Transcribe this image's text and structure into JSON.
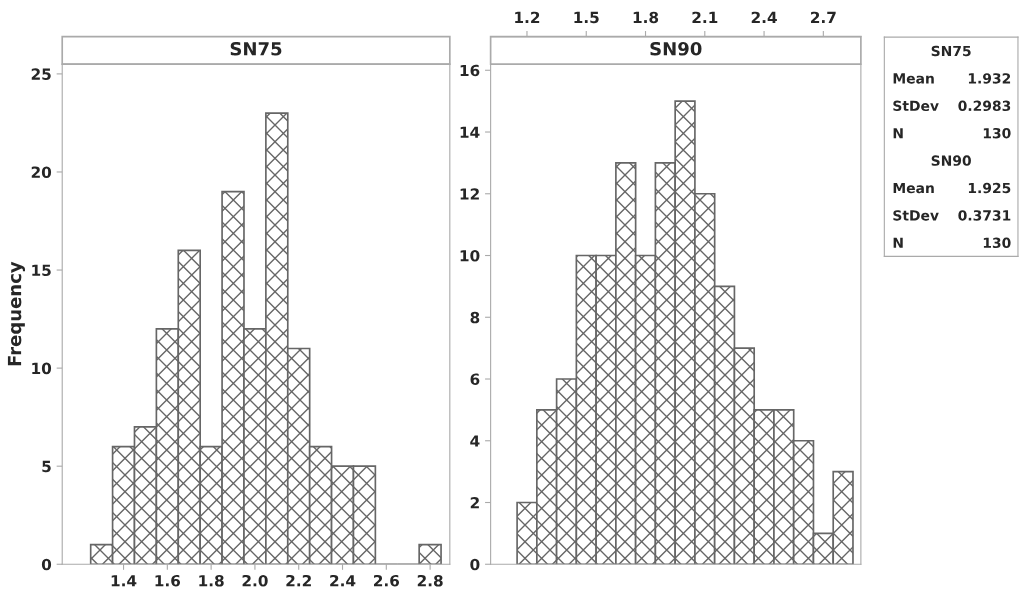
{
  "chart_data": [
    {
      "type": "histogram",
      "title": "SN75",
      "ylabel": "Frequency",
      "color": "#666666",
      "bins": [
        1.25,
        1.35,
        1.45,
        1.55,
        1.65,
        1.75,
        1.85,
        1.95,
        2.05,
        2.15,
        2.25,
        2.35,
        2.45,
        2.55,
        2.65,
        2.75,
        2.85
      ],
      "values": [
        1,
        6,
        7,
        12,
        16,
        6,
        19,
        12,
        23,
        11,
        6,
        5,
        5,
        0,
        0,
        1
      ],
      "xlim": [
        1.12,
        2.89
      ],
      "xticks": [
        {
          "value": 1.4,
          "label": "1.4"
        },
        {
          "value": 1.6,
          "label": "1.6"
        },
        {
          "value": 1.8,
          "label": "1.8"
        },
        {
          "value": 2.0,
          "label": "2.0"
        },
        {
          "value": 2.2,
          "label": "2.2"
        },
        {
          "value": 2.4,
          "label": "2.4"
        },
        {
          "value": 2.6,
          "label": "2.6"
        },
        {
          "value": 2.8,
          "label": "2.8"
        }
      ],
      "ylim": [
        0,
        25.5
      ],
      "yticks": [
        0,
        5,
        10,
        15,
        20,
        25
      ],
      "grid": false,
      "legend": false
    },
    {
      "type": "histogram",
      "title": "SN90",
      "color": "#666666",
      "bins": [
        1.15,
        1.25,
        1.35,
        1.45,
        1.55,
        1.65,
        1.75,
        1.85,
        1.95,
        2.05,
        2.15,
        2.25,
        2.35,
        2.45,
        2.55,
        2.65,
        2.75,
        2.85
      ],
      "values": [
        2,
        5,
        6,
        10,
        10,
        13,
        10,
        13,
        15,
        12,
        9,
        7,
        5,
        5,
        4,
        1,
        3
      ],
      "xlim": [
        1.016,
        2.89
      ],
      "xticks": [
        1.2,
        1.5,
        1.8,
        2.1,
        2.4,
        2.7
      ],
      "ylim": [
        0,
        16.2
      ],
      "yticks": [
        0,
        2,
        4,
        6,
        8,
        10,
        12,
        14,
        16
      ],
      "grid": false,
      "legend": false,
      "annotations": [
        "SN75",
        "Mean 1.932",
        "StDev 0.2983",
        "N 130",
        "SN90",
        "Mean 1.925",
        "StDev 0.3731",
        "N 130"
      ]
    }
  ]
}
